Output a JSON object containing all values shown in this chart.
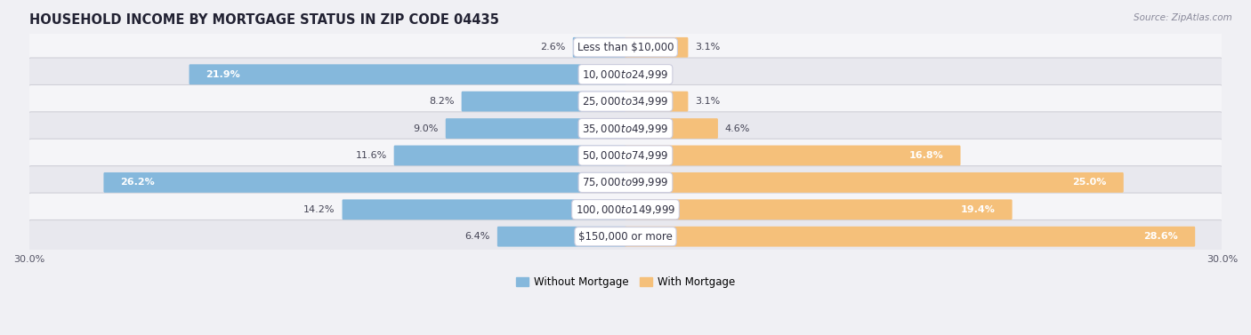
{
  "title": "HOUSEHOLD INCOME BY MORTGAGE STATUS IN ZIP CODE 04435",
  "source": "Source: ZipAtlas.com",
  "categories": [
    "Less than $10,000",
    "$10,000 to $24,999",
    "$25,000 to $34,999",
    "$35,000 to $49,999",
    "$50,000 to $74,999",
    "$75,000 to $99,999",
    "$100,000 to $149,999",
    "$150,000 or more"
  ],
  "without_mortgage": [
    2.6,
    21.9,
    8.2,
    9.0,
    11.6,
    26.2,
    14.2,
    6.4
  ],
  "with_mortgage": [
    3.1,
    0.0,
    3.1,
    4.6,
    16.8,
    25.0,
    19.4,
    28.6
  ],
  "color_without": "#85b8dc",
  "color_with": "#f5c07a",
  "color_without_dark": "#5b9fc8",
  "color_with_dark": "#e8a040",
  "axis_max": 30.0,
  "bg_color": "#f0f0f4",
  "row_bg_light": "#f5f5f8",
  "row_bg_dark": "#e8e8ee",
  "label_fontsize": 8.0,
  "cat_fontsize": 8.5,
  "title_fontsize": 10.5,
  "source_fontsize": 7.5,
  "bar_height": 0.65,
  "inside_threshold": 15.0
}
